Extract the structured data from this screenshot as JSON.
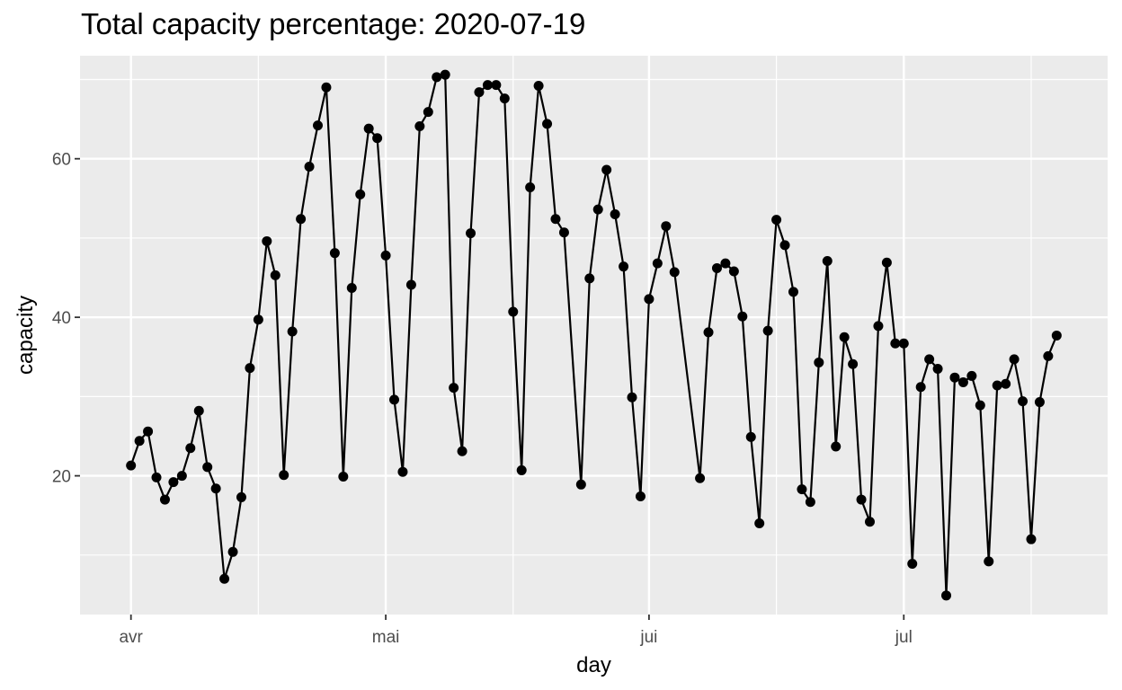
{
  "chart_data": {
    "type": "line",
    "title": "Total capacity percentage: 2020-07-19",
    "xlabel": "day",
    "ylabel": "capacity",
    "x_start": "2020-04-01",
    "x_ticks": [
      {
        "date": "2020-04-01",
        "label": "avr"
      },
      {
        "date": "2020-05-01",
        "label": "mai"
      },
      {
        "date": "2020-06-01",
        "label": "jui"
      },
      {
        "date": "2020-07-01",
        "label": "jul"
      }
    ],
    "x_minor": [
      "2020-04-16",
      "2020-05-16",
      "2020-06-16",
      "2020-07-16"
    ],
    "xlim": [
      "2020-03-26",
      "2020-07-25"
    ],
    "y_ticks": [
      20,
      40,
      60
    ],
    "y_minor": [
      10,
      30,
      50,
      70
    ],
    "ylim": [
      2.5,
      73
    ],
    "grid": true,
    "series": [
      {
        "color": "#000000",
        "points": [
          {
            "x": "2020-04-01",
            "y": 21.3
          },
          {
            "x": "2020-04-02",
            "y": 24.4
          },
          {
            "x": "2020-04-03",
            "y": 25.6
          },
          {
            "x": "2020-04-04",
            "y": 19.8
          },
          {
            "x": "2020-04-05",
            "y": 17.0
          },
          {
            "x": "2020-04-06",
            "y": 19.2
          },
          {
            "x": "2020-04-07",
            "y": 20.0
          },
          {
            "x": "2020-04-08",
            "y": 23.5
          },
          {
            "x": "2020-04-09",
            "y": 28.2
          },
          {
            "x": "2020-04-10",
            "y": 21.1
          },
          {
            "x": "2020-04-11",
            "y": 18.4
          },
          {
            "x": "2020-04-12",
            "y": 7.0
          },
          {
            "x": "2020-04-13",
            "y": 10.4
          },
          {
            "x": "2020-04-14",
            "y": 17.3
          },
          {
            "x": "2020-04-15",
            "y": 33.6
          },
          {
            "x": "2020-04-16",
            "y": 39.7
          },
          {
            "x": "2020-04-17",
            "y": 49.6
          },
          {
            "x": "2020-04-18",
            "y": 45.3
          },
          {
            "x": "2020-04-19",
            "y": 20.1
          },
          {
            "x": "2020-04-20",
            "y": 38.2
          },
          {
            "x": "2020-04-21",
            "y": 52.4
          },
          {
            "x": "2020-04-22",
            "y": 59.0
          },
          {
            "x": "2020-04-23",
            "y": 64.2
          },
          {
            "x": "2020-04-24",
            "y": 69.0
          },
          {
            "x": "2020-04-25",
            "y": 48.1
          },
          {
            "x": "2020-04-26",
            "y": 19.9
          },
          {
            "x": "2020-04-27",
            "y": 43.7
          },
          {
            "x": "2020-04-28",
            "y": 55.5
          },
          {
            "x": "2020-04-29",
            "y": 63.8
          },
          {
            "x": "2020-04-30",
            "y": 62.6
          },
          {
            "x": "2020-05-01",
            "y": 47.8
          },
          {
            "x": "2020-05-02",
            "y": 29.6
          },
          {
            "x": "2020-05-03",
            "y": 20.5
          },
          {
            "x": "2020-05-04",
            "y": 44.1
          },
          {
            "x": "2020-05-05",
            "y": 64.1
          },
          {
            "x": "2020-05-06",
            "y": 65.9
          },
          {
            "x": "2020-05-07",
            "y": 70.3
          },
          {
            "x": "2020-05-08",
            "y": 70.6
          },
          {
            "x": "2020-05-09",
            "y": 31.1
          },
          {
            "x": "2020-05-10",
            "y": 23.1
          },
          {
            "x": "2020-05-11",
            "y": 50.6
          },
          {
            "x": "2020-05-12",
            "y": 68.4
          },
          {
            "x": "2020-05-13",
            "y": 69.3
          },
          {
            "x": "2020-05-14",
            "y": 69.3
          },
          {
            "x": "2020-05-15",
            "y": 67.6
          },
          {
            "x": "2020-05-16",
            "y": 40.7
          },
          {
            "x": "2020-05-17",
            "y": 20.7
          },
          {
            "x": "2020-05-18",
            "y": 56.4
          },
          {
            "x": "2020-05-19",
            "y": 69.2
          },
          {
            "x": "2020-05-20",
            "y": 64.4
          },
          {
            "x": "2020-05-21",
            "y": 52.4
          },
          {
            "x": "2020-05-22",
            "y": 50.7
          },
          {
            "x": "2020-05-24",
            "y": 18.9
          },
          {
            "x": "2020-05-25",
            "y": 44.9
          },
          {
            "x": "2020-05-26",
            "y": 53.6
          },
          {
            "x": "2020-05-27",
            "y": 58.6
          },
          {
            "x": "2020-05-28",
            "y": 53.0
          },
          {
            "x": "2020-05-29",
            "y": 46.4
          },
          {
            "x": "2020-05-30",
            "y": 29.9
          },
          {
            "x": "2020-05-31",
            "y": 17.4
          },
          {
            "x": "2020-06-01",
            "y": 42.3
          },
          {
            "x": "2020-06-02",
            "y": 46.8
          },
          {
            "x": "2020-06-03",
            "y": 51.5
          },
          {
            "x": "2020-06-04",
            "y": 45.7
          },
          {
            "x": "2020-06-07",
            "y": 19.7
          },
          {
            "x": "2020-06-08",
            "y": 38.1
          },
          {
            "x": "2020-06-09",
            "y": 46.2
          },
          {
            "x": "2020-06-10",
            "y": 46.8
          },
          {
            "x": "2020-06-11",
            "y": 45.8
          },
          {
            "x": "2020-06-12",
            "y": 40.1
          },
          {
            "x": "2020-06-13",
            "y": 24.9
          },
          {
            "x": "2020-06-14",
            "y": 14.0
          },
          {
            "x": "2020-06-15",
            "y": 38.3
          },
          {
            "x": "2020-06-16",
            "y": 52.3
          },
          {
            "x": "2020-06-17",
            "y": 49.1
          },
          {
            "x": "2020-06-18",
            "y": 43.2
          },
          {
            "x": "2020-06-19",
            "y": 18.3
          },
          {
            "x": "2020-06-20",
            "y": 16.7
          },
          {
            "x": "2020-06-21",
            "y": 34.3
          },
          {
            "x": "2020-06-22",
            "y": 47.1
          },
          {
            "x": "2020-06-23",
            "y": 23.7
          },
          {
            "x": "2020-06-24",
            "y": 37.5
          },
          {
            "x": "2020-06-25",
            "y": 34.1
          },
          {
            "x": "2020-06-26",
            "y": 17.0
          },
          {
            "x": "2020-06-27",
            "y": 14.2
          },
          {
            "x": "2020-06-28",
            "y": 38.9
          },
          {
            "x": "2020-06-29",
            "y": 46.9
          },
          {
            "x": "2020-06-30",
            "y": 36.7
          },
          {
            "x": "2020-07-01",
            "y": 36.7
          },
          {
            "x": "2020-07-02",
            "y": 8.9
          },
          {
            "x": "2020-07-03",
            "y": 31.2
          },
          {
            "x": "2020-07-04",
            "y": 34.7
          },
          {
            "x": "2020-07-05",
            "y": 33.5
          },
          {
            "x": "2020-07-06",
            "y": 4.9
          },
          {
            "x": "2020-07-07",
            "y": 32.4
          },
          {
            "x": "2020-07-08",
            "y": 31.8
          },
          {
            "x": "2020-07-09",
            "y": 32.6
          },
          {
            "x": "2020-07-10",
            "y": 28.9
          },
          {
            "x": "2020-07-11",
            "y": 9.2
          },
          {
            "x": "2020-07-12",
            "y": 31.4
          },
          {
            "x": "2020-07-13",
            "y": 31.6
          },
          {
            "x": "2020-07-14",
            "y": 34.7
          },
          {
            "x": "2020-07-15",
            "y": 29.4
          },
          {
            "x": "2020-07-16",
            "y": 12.0
          },
          {
            "x": "2020-07-17",
            "y": 29.3
          },
          {
            "x": "2020-07-18",
            "y": 35.1
          },
          {
            "x": "2020-07-19",
            "y": 37.7
          }
        ]
      }
    ]
  }
}
